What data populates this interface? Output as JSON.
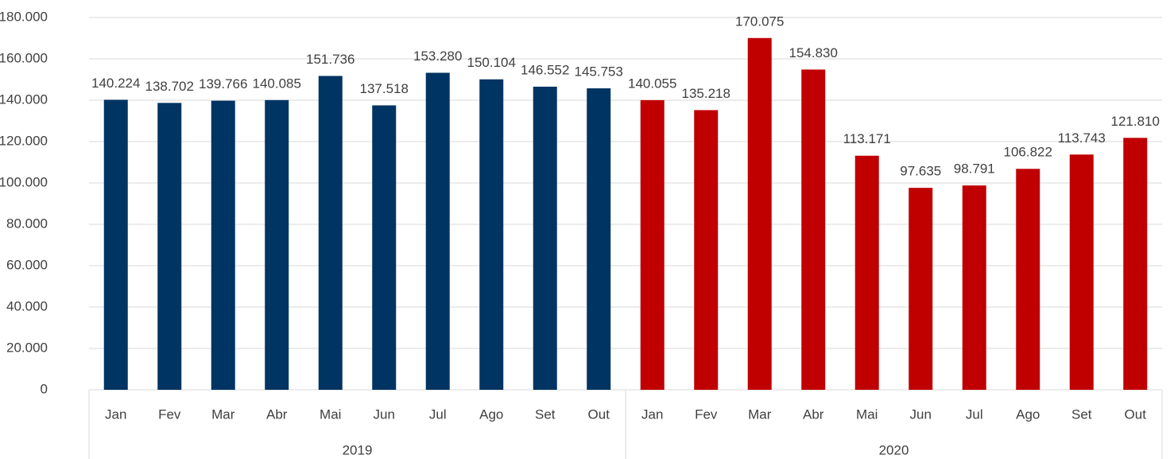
{
  "chart_data": {
    "type": "bar",
    "ylim": [
      0,
      180000
    ],
    "yticks": [
      0,
      {
        "value": 20000,
        "label": "20.000"
      },
      {
        "value": 40000,
        "label": "40.000"
      },
      {
        "value": 60000,
        "label": "60.000"
      },
      {
        "value": 80000,
        "label": "80.000"
      },
      {
        "value": 100000,
        "label": "100.000"
      },
      {
        "value": 120000,
        "label": "120.000"
      },
      {
        "value": 140000,
        "label": "140.000"
      },
      {
        "value": 160000,
        "label": "160.000"
      },
      {
        "value": 180000,
        "label": "180.000"
      }
    ],
    "grid": true,
    "groups": [
      {
        "name": "2019",
        "color": "#003462",
        "categories": [
          "Jan",
          "Fev",
          "Mar",
          "Abr",
          "Mai",
          "Jun",
          "Jul",
          "Ago",
          "Set",
          "Out"
        ],
        "values": [
          140224,
          138702,
          139766,
          140085,
          151736,
          137518,
          153280,
          150104,
          146552,
          145753
        ],
        "value_labels": [
          "140.224",
          "138.702",
          "139.766",
          "140.085",
          "151.736",
          "137.518",
          "153.280",
          "150.104",
          "146.552",
          "145.753"
        ]
      },
      {
        "name": "2020",
        "color": "#c00000",
        "categories": [
          "Jan",
          "Fev",
          "Mar",
          "Abr",
          "Mai",
          "Jun",
          "Jul",
          "Ago",
          "Set",
          "Out"
        ],
        "values": [
          140055,
          135218,
          170075,
          154830,
          113171,
          97635,
          98791,
          106822,
          113743,
          121810
        ],
        "value_labels": [
          "140.055",
          "135.218",
          "170.075",
          "154.830",
          "113.171",
          "97.635",
          "98.791",
          "106.822",
          "113.743",
          "121.810"
        ]
      }
    ]
  }
}
